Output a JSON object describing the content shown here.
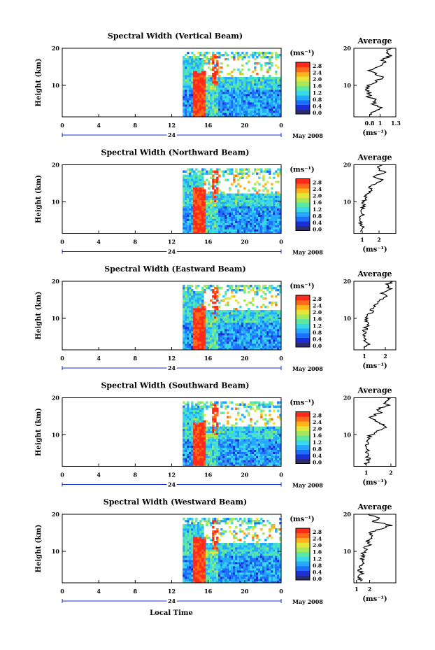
{
  "figure": {
    "xlabel": "Local Time",
    "date_label": "May 2008",
    "day_label": "24",
    "units_label": "(ms⁻¹)",
    "avg_title": "Average",
    "avg_xlabel": "(ms⁻¹)"
  },
  "colors": {
    "palette": [
      "#2b2b6e",
      "#1a2fd6",
      "#1f6fff",
      "#27a8ff",
      "#39d8e6",
      "#5ce8a0",
      "#a6e85a",
      "#e6e63a",
      "#ffb31a",
      "#ff6a1a",
      "#ff2a1a"
    ],
    "white_gap": "#ffffff"
  },
  "chart_data": [
    {
      "type": "heatmap",
      "title": "Spectral Width (Vertical Beam)",
      "xlabel": "Local Time",
      "ylabel": "Height (km)",
      "xlim": [
        0,
        24
      ],
      "ylim": [
        1.5,
        20
      ],
      "x_ticks": [
        "0",
        "4",
        "8",
        "12",
        "16",
        "20",
        "0"
      ],
      "y_ticks": [
        "20",
        "10"
      ],
      "data_start_hour": 13.2,
      "colorbar": {
        "min": 0,
        "max": 3.0,
        "ticks": [
          "2.8",
          "2.4",
          "2.0",
          "1.6",
          "1.2",
          "0.8",
          "0.4",
          "0.0"
        ]
      },
      "average": {
        "xlim": [
          0.5,
          1.3
        ],
        "x_ticks": [
          "0.8",
          "1",
          "1.3"
        ],
        "y_ticks": [
          "20",
          "10"
        ],
        "profile": [
          {
            "height": 2.0,
            "width": 0.8
          },
          {
            "height": 3.0,
            "width": 0.9
          },
          {
            "height": 4.0,
            "width": 1.0
          },
          {
            "height": 5.0,
            "width": 0.88
          },
          {
            "height": 6.0,
            "width": 0.92
          },
          {
            "height": 7.0,
            "width": 0.78
          },
          {
            "height": 8.0,
            "width": 0.8
          },
          {
            "height": 9.0,
            "width": 0.74
          },
          {
            "height": 10.0,
            "width": 0.8
          },
          {
            "height": 11.0,
            "width": 0.9
          },
          {
            "height": 12.0,
            "width": 1.05
          },
          {
            "height": 13.0,
            "width": 0.95
          },
          {
            "height": 14.0,
            "width": 0.8
          },
          {
            "height": 15.0,
            "width": 1.0
          },
          {
            "height": 16.0,
            "width": 1.1
          },
          {
            "height": 17.0,
            "width": 1.05
          },
          {
            "height": 18.0,
            "width": 1.2
          },
          {
            "height": 19.0,
            "width": 1.1
          },
          {
            "height": 20.0,
            "width": 1.22
          }
        ]
      }
    },
    {
      "type": "heatmap",
      "title": "Spectral Width (Northward Beam)",
      "xlabel": "Local Time",
      "ylabel": "Height (km)",
      "xlim": [
        0,
        24
      ],
      "ylim": [
        1.5,
        20
      ],
      "x_ticks": [
        "0",
        "4",
        "8",
        "12",
        "16",
        "20",
        "0"
      ],
      "y_ticks": [
        "20",
        "10"
      ],
      "data_start_hour": 13.2,
      "colorbar": {
        "min": 0,
        "max": 3.0,
        "ticks": [
          "2.8",
          "2.4",
          "2.0",
          "1.6",
          "1.2",
          "0.8",
          "0.4",
          "0.0"
        ]
      },
      "average": {
        "xlim": [
          0.5,
          3.0
        ],
        "x_ticks": [
          "1",
          "2"
        ],
        "y_ticks": [
          "20",
          "10"
        ],
        "profile": [
          {
            "height": 2.0,
            "width": 0.9
          },
          {
            "height": 3.0,
            "width": 1.1
          },
          {
            "height": 4.0,
            "width": 0.95
          },
          {
            "height": 5.0,
            "width": 0.9
          },
          {
            "height": 6.0,
            "width": 1.0
          },
          {
            "height": 7.0,
            "width": 0.95
          },
          {
            "height": 8.0,
            "width": 1.0
          },
          {
            "height": 9.0,
            "width": 1.05
          },
          {
            "height": 10.0,
            "width": 1.0
          },
          {
            "height": 11.0,
            "width": 1.2
          },
          {
            "height": 12.0,
            "width": 1.3
          },
          {
            "height": 13.0,
            "width": 1.5
          },
          {
            "height": 14.0,
            "width": 1.4
          },
          {
            "height": 15.0,
            "width": 1.8
          },
          {
            "height": 16.0,
            "width": 2.1
          },
          {
            "height": 17.0,
            "width": 1.7
          },
          {
            "height": 18.0,
            "width": 2.3
          },
          {
            "height": 19.0,
            "width": 1.9
          },
          {
            "height": 20.0,
            "width": 2.2
          }
        ]
      }
    },
    {
      "type": "heatmap",
      "title": "Spectral Width (Eastward Beam)",
      "xlabel": "Local Time",
      "ylabel": "Height (km)",
      "xlim": [
        0,
        24
      ],
      "ylim": [
        1.5,
        20
      ],
      "x_ticks": [
        "0",
        "4",
        "8",
        "12",
        "16",
        "20",
        "0"
      ],
      "y_ticks": [
        "20",
        "10"
      ],
      "data_start_hour": 13.2,
      "colorbar": {
        "min": 0,
        "max": 3.0,
        "ticks": [
          "2.8",
          "2.4",
          "2.0",
          "1.6",
          "1.2",
          "0.8",
          "0.4",
          "0.0"
        ]
      },
      "average": {
        "xlim": [
          0.5,
          2.5
        ],
        "x_ticks": [
          "1",
          "2"
        ],
        "y_ticks": [
          "20",
          "10"
        ],
        "profile": [
          {
            "height": 2.0,
            "width": 1.0
          },
          {
            "height": 3.0,
            "width": 1.15
          },
          {
            "height": 4.0,
            "width": 1.0
          },
          {
            "height": 5.0,
            "width": 0.95
          },
          {
            "height": 6.0,
            "width": 1.0
          },
          {
            "height": 7.0,
            "width": 1.05
          },
          {
            "height": 8.0,
            "width": 1.1
          },
          {
            "height": 9.0,
            "width": 1.15
          },
          {
            "height": 10.0,
            "width": 1.1
          },
          {
            "height": 11.0,
            "width": 1.25
          },
          {
            "height": 12.0,
            "width": 1.35
          },
          {
            "height": 13.0,
            "width": 1.45
          },
          {
            "height": 14.0,
            "width": 1.6
          },
          {
            "height": 15.0,
            "width": 1.8
          },
          {
            "height": 16.0,
            "width": 2.0
          },
          {
            "height": 17.0,
            "width": 1.85
          },
          {
            "height": 18.0,
            "width": 2.2
          },
          {
            "height": 19.0,
            "width": 2.05
          },
          {
            "height": 20.0,
            "width": 2.35
          }
        ]
      }
    },
    {
      "type": "heatmap",
      "title": "Spectral Width (Southward Beam)",
      "xlabel": "Local Time",
      "ylabel": "Height (km)",
      "xlim": [
        0,
        24
      ],
      "ylim": [
        1.5,
        20
      ],
      "x_ticks": [
        "0",
        "4",
        "8",
        "12",
        "16",
        "20",
        "0"
      ],
      "y_ticks": [
        "20",
        "10"
      ],
      "data_start_hour": 13.2,
      "colorbar": {
        "min": 0,
        "max": 3.0,
        "ticks": [
          "2.8",
          "2.4",
          "2.0",
          "1.6",
          "1.2",
          "0.8",
          "0.4",
          "0.0"
        ]
      },
      "average": {
        "xlim": [
          0.5,
          2.2
        ],
        "x_ticks": [
          "1",
          "2"
        ],
        "y_ticks": [
          "20",
          "10"
        ],
        "profile": [
          {
            "height": 2.0,
            "width": 1.0
          },
          {
            "height": 3.0,
            "width": 1.1
          },
          {
            "height": 4.0,
            "width": 1.05
          },
          {
            "height": 5.0,
            "width": 1.0
          },
          {
            "height": 6.0,
            "width": 1.05
          },
          {
            "height": 7.0,
            "width": 1.0
          },
          {
            "height": 8.0,
            "width": 1.05
          },
          {
            "height": 9.0,
            "width": 1.1
          },
          {
            "height": 10.0,
            "width": 1.2
          },
          {
            "height": 11.0,
            "width": 1.4
          },
          {
            "height": 12.0,
            "width": 1.8
          },
          {
            "height": 13.0,
            "width": 1.6
          },
          {
            "height": 14.0,
            "width": 1.3
          },
          {
            "height": 15.0,
            "width": 1.2
          },
          {
            "height": 16.0,
            "width": 1.6
          },
          {
            "height": 17.0,
            "width": 1.5
          },
          {
            "height": 18.0,
            "width": 1.85
          },
          {
            "height": 19.0,
            "width": 1.7
          },
          {
            "height": 20.0,
            "width": 2.0
          }
        ]
      }
    },
    {
      "type": "heatmap",
      "title": "Spectral Width (Westward Beam)",
      "xlabel": "Local Time",
      "ylabel": "Height (km)",
      "xlim": [
        0,
        24
      ],
      "ylim": [
        1.5,
        20
      ],
      "x_ticks": [
        "0",
        "4",
        "8",
        "12",
        "16",
        "20",
        "0"
      ],
      "y_ticks": [
        "20",
        "10"
      ],
      "data_start_hour": 13.2,
      "colorbar": {
        "min": 0,
        "max": 3.0,
        "ticks": [
          "2.8",
          "2.4",
          "2.0",
          "1.6",
          "1.2",
          "0.8",
          "0.4",
          "0.0"
        ]
      },
      "average": {
        "xlim": [
          0.8,
          4.0
        ],
        "x_ticks": [
          "1",
          "2"
        ],
        "y_ticks": [
          "20",
          "10"
        ],
        "profile": [
          {
            "height": 2.0,
            "width": 1.3
          },
          {
            "height": 3.0,
            "width": 1.2
          },
          {
            "height": 4.0,
            "width": 1.35
          },
          {
            "height": 5.0,
            "width": 1.25
          },
          {
            "height": 6.0,
            "width": 1.3
          },
          {
            "height": 7.0,
            "width": 1.4
          },
          {
            "height": 8.0,
            "width": 1.35
          },
          {
            "height": 9.0,
            "width": 1.5
          },
          {
            "height": 10.0,
            "width": 1.6
          },
          {
            "height": 11.0,
            "width": 1.7
          },
          {
            "height": 12.0,
            "width": 2.0
          },
          {
            "height": 13.0,
            "width": 1.8
          },
          {
            "height": 14.0,
            "width": 2.3
          },
          {
            "height": 15.0,
            "width": 2.0
          },
          {
            "height": 16.0,
            "width": 2.8
          },
          {
            "height": 17.0,
            "width": 3.6
          },
          {
            "height": 18.0,
            "width": 2.4
          },
          {
            "height": 19.0,
            "width": 2.6
          },
          {
            "height": 20.0,
            "width": 1.9
          }
        ]
      }
    }
  ]
}
